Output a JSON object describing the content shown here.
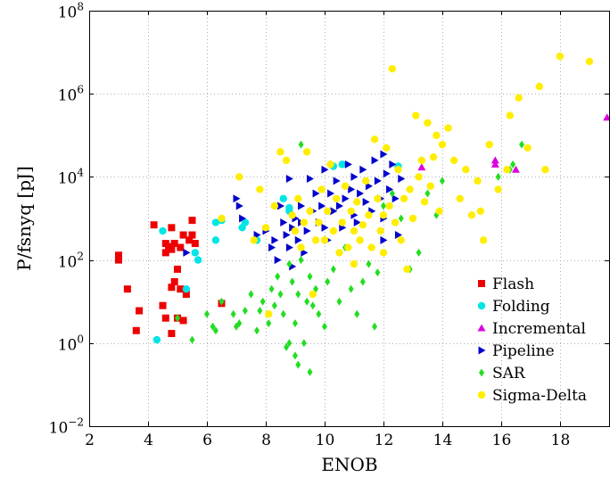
{
  "chart_data": {
    "type": "scatter",
    "xlabel": "ENOB",
    "ylabel": "P/fsnyq [pJ]",
    "xscale": "linear",
    "yscale": "log",
    "xlim": [
      2,
      19.7
    ],
    "ylim": [
      0.01,
      100000000
    ],
    "xticks": [
      2,
      4,
      6,
      8,
      10,
      12,
      14,
      16,
      18
    ],
    "yticks": [
      {
        "value": 0.01,
        "base": "10",
        "exp": "−2"
      },
      {
        "value": 1,
        "base": "10",
        "exp": "0"
      },
      {
        "value": 100,
        "base": "10",
        "exp": "2"
      },
      {
        "value": 10000,
        "base": "10",
        "exp": "4"
      },
      {
        "value": 1000000,
        "base": "10",
        "exp": "6"
      },
      {
        "value": 100000000,
        "base": "10",
        "exp": "8"
      }
    ],
    "grid": true,
    "legend_position": "bottom-right",
    "series": [
      {
        "name": "Flash",
        "marker": "square",
        "color": "#ee0000",
        "points": [
          [
            3.0,
            100
          ],
          [
            3.0,
            130
          ],
          [
            3.3,
            20
          ],
          [
            3.6,
            2
          ],
          [
            3.7,
            6
          ],
          [
            4.2,
            700
          ],
          [
            4.5,
            8
          ],
          [
            4.6,
            150
          ],
          [
            4.6,
            250
          ],
          [
            4.6,
            4
          ],
          [
            4.8,
            180
          ],
          [
            4.8,
            600
          ],
          [
            4.8,
            1.7
          ],
          [
            4.9,
            250
          ],
          [
            4.9,
            30
          ],
          [
            5.0,
            60
          ],
          [
            5.0,
            4
          ],
          [
            5.1,
            200
          ],
          [
            5.2,
            3.5
          ],
          [
            5.2,
            400
          ],
          [
            5.3,
            15
          ],
          [
            5.4,
            300
          ],
          [
            5.5,
            900
          ],
          [
            5.5,
            400
          ],
          [
            5.6,
            250
          ],
          [
            4.8,
            22
          ],
          [
            5.1,
            20
          ],
          [
            4.7,
            210
          ],
          [
            6.5,
            9
          ]
        ]
      },
      {
        "name": "Folding",
        "marker": "circle",
        "color": "#00e5e5",
        "points": [
          [
            4.3,
            1.2
          ],
          [
            4.5,
            500
          ],
          [
            5.3,
            20
          ],
          [
            5.6,
            150
          ],
          [
            5.7,
            100
          ],
          [
            6.3,
            800
          ],
          [
            6.3,
            300
          ],
          [
            6.5,
            900
          ],
          [
            7.2,
            600
          ],
          [
            7.3,
            800
          ],
          [
            7.7,
            300
          ],
          [
            8.6,
            3000
          ],
          [
            8.8,
            1500
          ],
          [
            8.8,
            1800
          ],
          [
            10.3,
            18000
          ],
          [
            10.6,
            20000
          ],
          [
            12.5,
            18000
          ]
        ]
      },
      {
        "name": "Incremental",
        "marker": "triangle-up",
        "color": "#dd00dd",
        "points": [
          [
            13.3,
            17000
          ],
          [
            15.8,
            25000
          ],
          [
            15.8,
            20000
          ],
          [
            16.5,
            15000
          ],
          [
            19.6,
            270000
          ]
        ]
      },
      {
        "name": "Pipeline",
        "marker": "triangle-right",
        "color": "#0000cc",
        "points": [
          [
            5.3,
            150
          ],
          [
            7.0,
            3000
          ],
          [
            7.1,
            2000
          ],
          [
            7.2,
            1000
          ],
          [
            7.7,
            400
          ],
          [
            8.0,
            500
          ],
          [
            8.2,
            200
          ],
          [
            8.3,
            300
          ],
          [
            8.4,
            100
          ],
          [
            8.5,
            2000
          ],
          [
            8.6,
            800
          ],
          [
            8.7,
            400
          ],
          [
            8.8,
            200
          ],
          [
            8.8,
            9000
          ],
          [
            8.9,
            600
          ],
          [
            8.9,
            70
          ],
          [
            9.0,
            1000
          ],
          [
            9.1,
            300
          ],
          [
            9.2,
            800
          ],
          [
            9.2,
            2000
          ],
          [
            9.3,
            150
          ],
          [
            9.4,
            500
          ],
          [
            9.5,
            9000
          ],
          [
            9.6,
            1500
          ],
          [
            9.7,
            4000
          ],
          [
            9.8,
            800
          ],
          [
            9.9,
            2000
          ],
          [
            10.0,
            600
          ],
          [
            10.0,
            15000
          ],
          [
            10.1,
            300
          ],
          [
            10.2,
            4000
          ],
          [
            10.3,
            1500
          ],
          [
            10.4,
            8000
          ],
          [
            10.5,
            2000
          ],
          [
            10.6,
            600
          ],
          [
            10.7,
            3000
          ],
          [
            10.8,
            20000
          ],
          [
            10.9,
            5000
          ],
          [
            11.0,
            1200
          ],
          [
            11.0,
            10000
          ],
          [
            11.1,
            800
          ],
          [
            11.2,
            4000
          ],
          [
            11.3,
            15000
          ],
          [
            11.4,
            2500
          ],
          [
            11.5,
            6000
          ],
          [
            11.6,
            1500
          ],
          [
            11.7,
            25000
          ],
          [
            11.8,
            8000
          ],
          [
            11.9,
            3000
          ],
          [
            12.0,
            35000
          ],
          [
            12.0,
            1000
          ],
          [
            12.1,
            12000
          ],
          [
            12.2,
            5000
          ],
          [
            12.3,
            20000
          ],
          [
            12.4,
            3000
          ],
          [
            12.5,
            400
          ],
          [
            12.6,
            9000
          ],
          [
            12.0,
            300
          ]
        ]
      },
      {
        "name": "SAR",
        "marker": "diamond",
        "color": "#22dd22",
        "points": [
          [
            5.0,
            4
          ],
          [
            5.5,
            1.2
          ],
          [
            6.0,
            5
          ],
          [
            6.2,
            2.5
          ],
          [
            6.3,
            2
          ],
          [
            6.5,
            10
          ],
          [
            6.9,
            5
          ],
          [
            7.0,
            2.5
          ],
          [
            7.1,
            3
          ],
          [
            7.3,
            6
          ],
          [
            7.5,
            15
          ],
          [
            7.7,
            2
          ],
          [
            7.8,
            6
          ],
          [
            7.9,
            10
          ],
          [
            8.1,
            3
          ],
          [
            8.2,
            20
          ],
          [
            8.3,
            8
          ],
          [
            8.4,
            40
          ],
          [
            8.5,
            15
          ],
          [
            8.6,
            5
          ],
          [
            8.7,
            0.8
          ],
          [
            8.8,
            1
          ],
          [
            8.8,
            80
          ],
          [
            8.9,
            30
          ],
          [
            9.0,
            3
          ],
          [
            9.0,
            0.5
          ],
          [
            9.1,
            0.3
          ],
          [
            9.1,
            15
          ],
          [
            9.2,
            60000
          ],
          [
            9.2,
            100
          ],
          [
            9.3,
            1
          ],
          [
            9.4,
            10
          ],
          [
            9.5,
            0.2
          ],
          [
            9.5,
            40
          ],
          [
            9.6,
            8
          ],
          [
            9.7,
            20
          ],
          [
            9.8,
            5
          ],
          [
            10.0,
            2.5
          ],
          [
            10.1,
            30
          ],
          [
            10.3,
            60
          ],
          [
            10.5,
            10
          ],
          [
            10.7,
            200
          ],
          [
            10.9,
            20
          ],
          [
            11.1,
            5
          ],
          [
            11.3,
            30
          ],
          [
            11.5,
            80
          ],
          [
            11.7,
            2.5
          ],
          [
            11.8,
            50
          ],
          [
            12.0,
            2000
          ],
          [
            12.3,
            4000
          ],
          [
            12.6,
            1000
          ],
          [
            12.9,
            60
          ],
          [
            13.2,
            150
          ],
          [
            13.5,
            4000
          ],
          [
            13.8,
            1200
          ],
          [
            14.0,
            8000
          ],
          [
            15.9,
            10000
          ],
          [
            16.3,
            15000
          ],
          [
            16.7,
            60000
          ],
          [
            16.4,
            20000
          ]
        ]
      },
      {
        "name": "Sigma-Delta",
        "marker": "circle",
        "color": "#ffee00",
        "points": [
          [
            6.5,
            1000
          ],
          [
            7.1,
            10000
          ],
          [
            7.6,
            300
          ],
          [
            7.8,
            5000
          ],
          [
            8.0,
            600
          ],
          [
            8.1,
            5
          ],
          [
            8.3,
            2000
          ],
          [
            8.5,
            40000
          ],
          [
            8.7,
            25000
          ],
          [
            8.9,
            1200
          ],
          [
            9.0,
            500
          ],
          [
            9.1,
            3000
          ],
          [
            9.2,
            200
          ],
          [
            9.3,
            800
          ],
          [
            9.4,
            40000
          ],
          [
            9.5,
            1500
          ],
          [
            9.6,
            15
          ],
          [
            9.7,
            300
          ],
          [
            9.8,
            800
          ],
          [
            9.9,
            5000
          ],
          [
            10.0,
            300
          ],
          [
            10.1,
            1500
          ],
          [
            10.2,
            20000
          ],
          [
            10.3,
            500
          ],
          [
            10.4,
            3000
          ],
          [
            10.5,
            150
          ],
          [
            10.6,
            800
          ],
          [
            10.7,
            6000
          ],
          [
            10.8,
            200
          ],
          [
            10.9,
            1500
          ],
          [
            11.0,
            500
          ],
          [
            11.0,
            80
          ],
          [
            11.1,
            2500
          ],
          [
            11.2,
            300
          ],
          [
            11.3,
            700
          ],
          [
            11.4,
            8000
          ],
          [
            11.5,
            1200
          ],
          [
            11.6,
            200
          ],
          [
            11.7,
            80000
          ],
          [
            11.8,
            3000
          ],
          [
            11.9,
            500
          ],
          [
            12.0,
            150
          ],
          [
            12.0,
            1200
          ],
          [
            12.1,
            50000
          ],
          [
            12.2,
            2000
          ],
          [
            12.3,
            4000000
          ],
          [
            12.4,
            800
          ],
          [
            12.5,
            15000
          ],
          [
            12.6,
            300
          ],
          [
            12.7,
            3000
          ],
          [
            12.8,
            60
          ],
          [
            12.9,
            5000
          ],
          [
            13.0,
            1000
          ],
          [
            13.1,
            300000
          ],
          [
            13.2,
            10000
          ],
          [
            13.3,
            25000
          ],
          [
            13.4,
            2500
          ],
          [
            13.5,
            200000
          ],
          [
            13.6,
            6000
          ],
          [
            13.7,
            30000
          ],
          [
            13.8,
            100000
          ],
          [
            13.9,
            1500
          ],
          [
            14.0,
            60000
          ],
          [
            14.2,
            150000
          ],
          [
            14.4,
            25000
          ],
          [
            14.6,
            3000
          ],
          [
            14.8,
            15000
          ],
          [
            15.0,
            1200
          ],
          [
            15.2,
            8000
          ],
          [
            15.3,
            1500
          ],
          [
            15.4,
            300
          ],
          [
            15.6,
            60000
          ],
          [
            15.9,
            5000
          ],
          [
            16.2,
            15000
          ],
          [
            16.3,
            300000
          ],
          [
            16.6,
            800000
          ],
          [
            16.9,
            50000
          ],
          [
            17.3,
            1500000
          ],
          [
            17.5,
            15000
          ],
          [
            18.0,
            8000000
          ],
          [
            19.0,
            6000000
          ]
        ]
      }
    ]
  }
}
